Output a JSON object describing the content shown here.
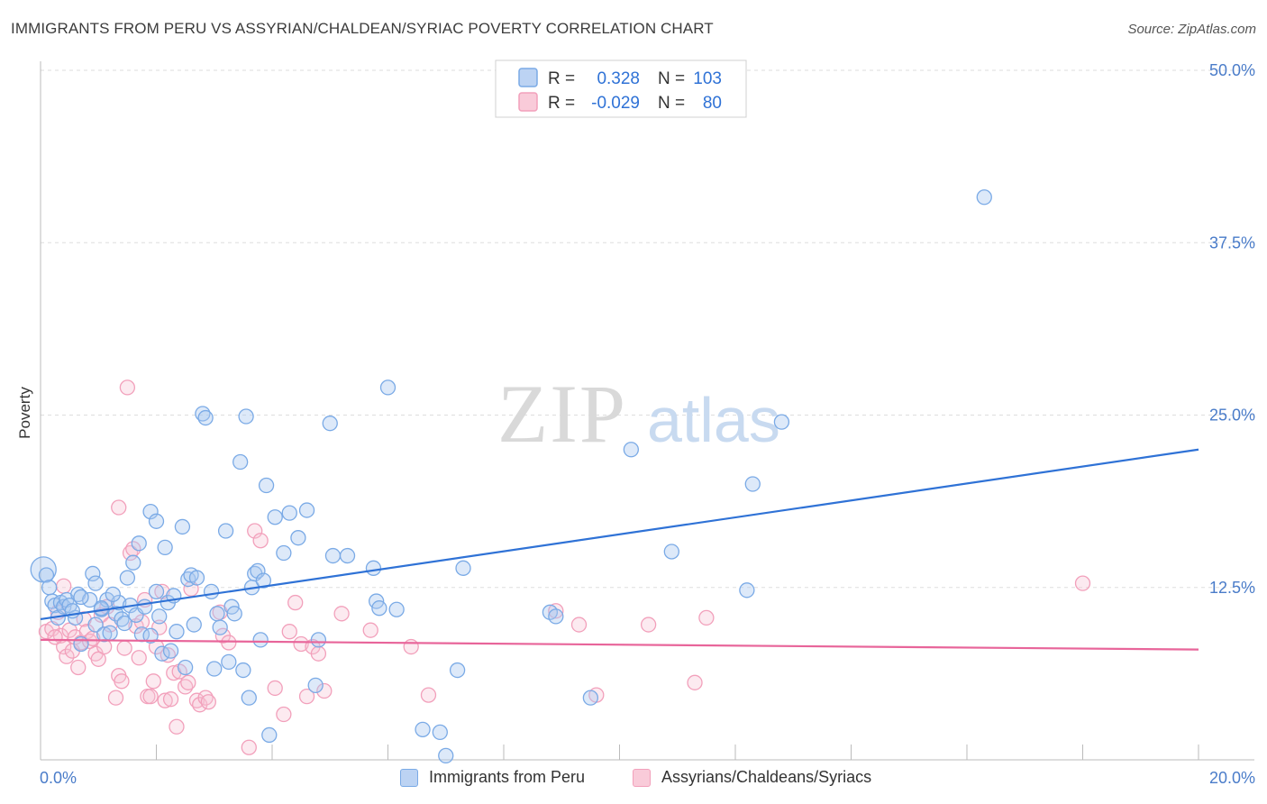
{
  "title": "IMMIGRANTS FROM PERU VS ASSYRIAN/CHALDEAN/SYRIAC POVERTY CORRELATION CHART",
  "source": "Source: ZipAtlas.com",
  "watermark": {
    "zip": "ZIP",
    "atlas": "atlas"
  },
  "colors": {
    "blue": "#7aaae6",
    "blue_line": "#2f72d6",
    "pink": "#f2a0bb",
    "pink_line": "#e8659a",
    "tick_text": "#4a7cc9",
    "grid": "#d9d9d9"
  },
  "legend_box": {
    "rows": [
      {
        "r_label": "R =",
        "r_value": "0.328",
        "n_label": "N =",
        "n_value": "103"
      },
      {
        "r_label": "R =",
        "r_value": "-0.029",
        "n_label": "N =",
        "n_value": "80"
      }
    ]
  },
  "bottom_legend": [
    {
      "label": "Immigrants from Peru"
    },
    {
      "label": "Assyrians/Chaldeans/Syriacs"
    }
  ],
  "chart_data": {
    "type": "scatter",
    "title": "IMMIGRANTS FROM PERU VS ASSYRIAN/CHALDEAN/SYRIAC POVERTY CORRELATION CHART",
    "xlabel": "",
    "ylabel": "Poverty",
    "xlim": [
      0,
      20
    ],
    "ylim": [
      0,
      50
    ],
    "x_ticks": [
      "0.0%",
      "20.0%"
    ],
    "y_ticks": [
      {
        "value": 12.5,
        "label": "12.5%"
      },
      {
        "value": 25.0,
        "label": "25.0%"
      },
      {
        "value": 37.5,
        "label": "37.5%"
      },
      {
        "value": 50.0,
        "label": "50.0%"
      }
    ],
    "grid": true,
    "legend_position": "top-center",
    "series": [
      {
        "name": "Immigrants from Peru",
        "color": "#7aaae6",
        "trend": {
          "x": [
            0,
            20
          ],
          "y": [
            10.2,
            22.5
          ]
        },
        "points": [
          [
            0.05,
            13.8
          ],
          [
            0.1,
            13.4
          ],
          [
            0.2,
            11.5
          ],
          [
            0.25,
            11.2
          ],
          [
            0.3,
            10.3
          ],
          [
            0.35,
            11.4
          ],
          [
            0.4,
            11.1
          ],
          [
            0.45,
            11.6
          ],
          [
            0.5,
            11.2
          ],
          [
            0.6,
            10.3
          ],
          [
            0.65,
            12.0
          ],
          [
            0.7,
            8.4
          ],
          [
            0.85,
            11.6
          ],
          [
            0.9,
            13.5
          ],
          [
            0.95,
            9.8
          ],
          [
            1.05,
            10.9
          ],
          [
            1.1,
            9.1
          ],
          [
            1.15,
            11.6
          ],
          [
            1.2,
            9.2
          ],
          [
            1.3,
            10.6
          ],
          [
            1.35,
            11.4
          ],
          [
            1.4,
            10.2
          ],
          [
            1.45,
            9.9
          ],
          [
            1.5,
            13.2
          ],
          [
            1.55,
            11.2
          ],
          [
            1.6,
            14.3
          ],
          [
            1.65,
            10.5
          ],
          [
            1.7,
            15.7
          ],
          [
            1.75,
            9.1
          ],
          [
            1.8,
            11.1
          ],
          [
            1.9,
            18.0
          ],
          [
            2.0,
            17.3
          ],
          [
            2.05,
            10.4
          ],
          [
            2.1,
            7.7
          ],
          [
            2.15,
            15.4
          ],
          [
            2.2,
            11.4
          ],
          [
            2.3,
            11.9
          ],
          [
            2.35,
            9.3
          ],
          [
            2.45,
            16.9
          ],
          [
            2.5,
            6.7
          ],
          [
            2.55,
            13.1
          ],
          [
            2.6,
            13.4
          ],
          [
            2.65,
            9.8
          ],
          [
            2.8,
            25.1
          ],
          [
            2.85,
            24.8
          ],
          [
            2.95,
            12.2
          ],
          [
            3.0,
            6.6
          ],
          [
            3.05,
            10.6
          ],
          [
            3.1,
            9.6
          ],
          [
            3.2,
            16.6
          ],
          [
            3.3,
            11.1
          ],
          [
            3.35,
            10.6
          ],
          [
            3.45,
            21.6
          ],
          [
            3.5,
            6.5
          ],
          [
            3.55,
            24.9
          ],
          [
            3.6,
            4.5
          ],
          [
            3.65,
            12.5
          ],
          [
            3.7,
            13.5
          ],
          [
            3.75,
            13.7
          ],
          [
            3.8,
            8.7
          ],
          [
            3.85,
            13.0
          ],
          [
            3.9,
            19.9
          ],
          [
            3.95,
            1.8
          ],
          [
            4.05,
            17.6
          ],
          [
            4.2,
            15.0
          ],
          [
            4.3,
            17.9
          ],
          [
            4.45,
            16.1
          ],
          [
            4.6,
            18.1
          ],
          [
            4.75,
            5.4
          ],
          [
            4.8,
            8.7
          ],
          [
            5.0,
            24.4
          ],
          [
            5.05,
            14.8
          ],
          [
            5.3,
            14.8
          ],
          [
            5.75,
            13.9
          ],
          [
            5.8,
            11.5
          ],
          [
            5.85,
            11.0
          ],
          [
            6.0,
            27.0
          ],
          [
            6.15,
            10.9
          ],
          [
            6.6,
            2.2
          ],
          [
            6.9,
            2.0
          ],
          [
            7.0,
            0.3
          ],
          [
            7.2,
            6.5
          ],
          [
            7.3,
            13.9
          ],
          [
            8.8,
            10.7
          ],
          [
            8.9,
            10.4
          ],
          [
            9.5,
            4.5
          ],
          [
            10.2,
            22.5
          ],
          [
            10.9,
            15.1
          ],
          [
            12.2,
            12.3
          ],
          [
            12.3,
            20.0
          ],
          [
            12.8,
            24.5
          ],
          [
            16.3,
            40.8
          ],
          [
            0.15,
            12.5
          ],
          [
            0.7,
            11.8
          ],
          [
            1.9,
            9.0
          ],
          [
            2.25,
            7.9
          ],
          [
            1.25,
            12.0
          ],
          [
            0.55,
            10.8
          ],
          [
            2.7,
            13.2
          ],
          [
            3.25,
            7.1
          ],
          [
            0.95,
            12.8
          ],
          [
            1.05,
            11.0
          ],
          [
            2.0,
            12.2
          ]
        ]
      },
      {
        "name": "Assyrians/Chaldeans/Syriacs",
        "color": "#f2a0bb",
        "trend": {
          "x": [
            0,
            20
          ],
          "y": [
            8.7,
            8.0
          ]
        },
        "points": [
          [
            0.1,
            9.3
          ],
          [
            0.2,
            9.5
          ],
          [
            0.3,
            10.7
          ],
          [
            0.35,
            9.0
          ],
          [
            0.4,
            8.2
          ],
          [
            0.45,
            7.5
          ],
          [
            0.5,
            9.4
          ],
          [
            0.55,
            7.9
          ],
          [
            0.6,
            8.9
          ],
          [
            0.65,
            6.7
          ],
          [
            0.7,
            8.5
          ],
          [
            0.75,
            10.2
          ],
          [
            0.8,
            9.3
          ],
          [
            0.85,
            8.6
          ],
          [
            0.9,
            8.8
          ],
          [
            0.95,
            7.7
          ],
          [
            1.0,
            7.3
          ],
          [
            1.05,
            10.5
          ],
          [
            1.1,
            8.2
          ],
          [
            1.15,
            11.1
          ],
          [
            1.2,
            9.8
          ],
          [
            1.3,
            4.5
          ],
          [
            1.35,
            6.1
          ],
          [
            1.4,
            5.7
          ],
          [
            1.45,
            8.1
          ],
          [
            1.5,
            27.0
          ],
          [
            1.55,
            15.0
          ],
          [
            1.6,
            15.3
          ],
          [
            1.65,
            9.7
          ],
          [
            1.7,
            7.4
          ],
          [
            1.75,
            10.0
          ],
          [
            1.8,
            11.6
          ],
          [
            1.85,
            4.6
          ],
          [
            1.9,
            4.6
          ],
          [
            1.95,
            5.7
          ],
          [
            2.0,
            8.2
          ],
          [
            2.05,
            9.6
          ],
          [
            2.1,
            12.2
          ],
          [
            2.15,
            4.3
          ],
          [
            2.2,
            7.6
          ],
          [
            2.25,
            4.4
          ],
          [
            2.3,
            6.3
          ],
          [
            2.35,
            2.4
          ],
          [
            2.4,
            6.4
          ],
          [
            2.5,
            5.3
          ],
          [
            2.55,
            5.6
          ],
          [
            2.6,
            12.4
          ],
          [
            2.7,
            4.3
          ],
          [
            2.75,
            4.0
          ],
          [
            2.85,
            4.5
          ],
          [
            2.9,
            4.2
          ],
          [
            3.1,
            10.7
          ],
          [
            3.15,
            9.0
          ],
          [
            3.25,
            8.5
          ],
          [
            3.6,
            0.9
          ],
          [
            3.7,
            16.6
          ],
          [
            3.8,
            15.9
          ],
          [
            4.05,
            5.2
          ],
          [
            4.2,
            3.3
          ],
          [
            4.3,
            9.3
          ],
          [
            4.4,
            11.4
          ],
          [
            4.5,
            8.4
          ],
          [
            4.6,
            4.6
          ],
          [
            4.7,
            8.2
          ],
          [
            4.8,
            7.7
          ],
          [
            4.9,
            5.0
          ],
          [
            5.2,
            10.6
          ],
          [
            5.7,
            9.4
          ],
          [
            6.4,
            8.2
          ],
          [
            6.7,
            4.7
          ],
          [
            8.9,
            10.8
          ],
          [
            9.3,
            9.8
          ],
          [
            9.6,
            4.7
          ],
          [
            10.5,
            9.8
          ],
          [
            11.3,
            5.6
          ],
          [
            11.5,
            10.3
          ],
          [
            18.0,
            12.8
          ],
          [
            0.4,
            12.6
          ],
          [
            1.35,
            18.3
          ],
          [
            0.25,
            8.9
          ]
        ]
      }
    ]
  }
}
